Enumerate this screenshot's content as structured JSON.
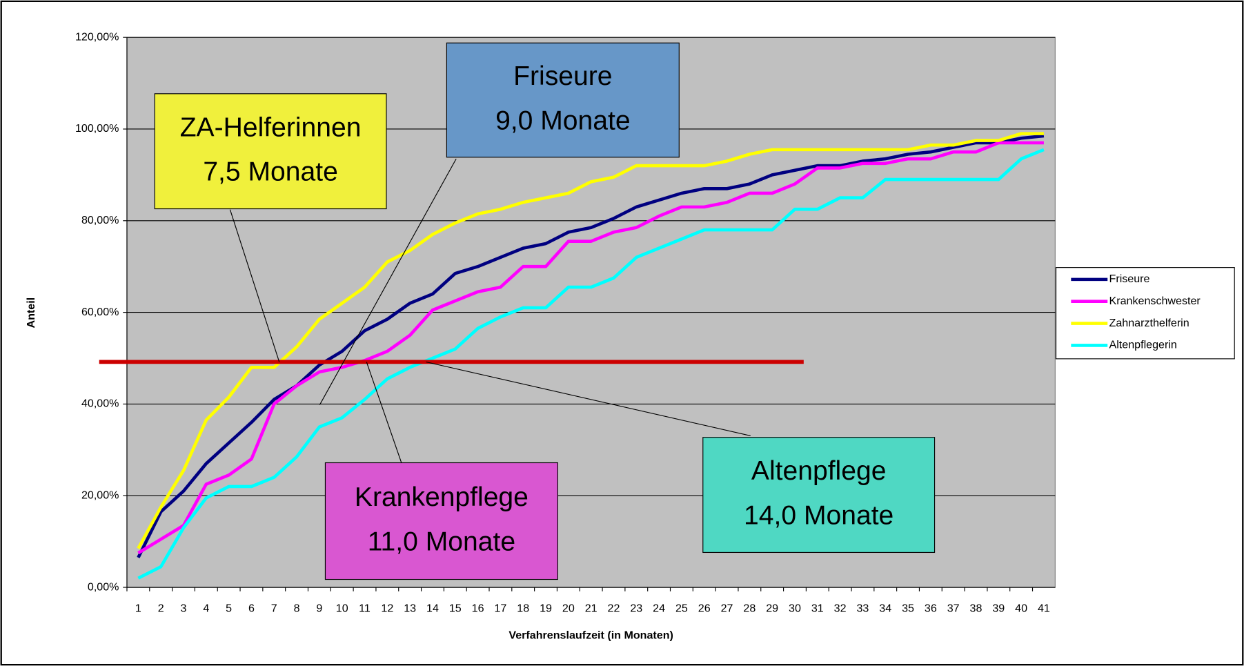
{
  "chart_data": {
    "type": "line",
    "x_label": "Verfahrenslaufzeit (in Monaten)",
    "y_label": "Anteil",
    "categories": [
      1,
      2,
      3,
      4,
      5,
      6,
      7,
      8,
      9,
      10,
      11,
      12,
      13,
      14,
      15,
      16,
      17,
      18,
      19,
      20,
      21,
      22,
      23,
      24,
      25,
      26,
      27,
      28,
      29,
      30,
      31,
      32,
      33,
      34,
      35,
      36,
      37,
      38,
      39,
      40,
      41
    ],
    "ylim": [
      0,
      120
    ],
    "yticks": [
      {
        "value": 0,
        "label": "0,00%"
      },
      {
        "value": 20,
        "label": "20,00%"
      },
      {
        "value": 40,
        "label": "40,00%"
      },
      {
        "value": 60,
        "label": "60,00%"
      },
      {
        "value": 80,
        "label": "80,00%"
      },
      {
        "value": 100,
        "label": "100,00%"
      },
      {
        "value": 120,
        "label": "120,00%"
      }
    ],
    "grid": true,
    "legend": "right",
    "series": [
      {
        "name": "Friseure",
        "color": "#000080",
        "values": [
          6.5,
          16.5,
          21,
          27,
          31.5,
          36,
          41,
          44,
          48.5,
          51.5,
          56,
          58.5,
          62,
          64,
          68.5,
          70,
          72,
          74,
          75,
          77.5,
          78.5,
          80.5,
          83,
          84.5,
          86,
          87,
          87,
          88,
          90,
          91,
          92,
          92,
          93,
          93.5,
          94.5,
          95,
          96,
          97,
          97,
          98,
          98.5
        ]
      },
      {
        "name": "Krankenschwester",
        "color": "#ff00ff",
        "values": [
          7.5,
          10.5,
          13.5,
          22.5,
          24.5,
          28,
          40,
          44,
          47,
          48,
          49.5,
          51.5,
          55,
          60.5,
          62.5,
          64.5,
          65.5,
          70,
          70,
          75.5,
          75.5,
          77.5,
          78.5,
          81,
          83,
          83,
          84,
          86,
          86,
          88,
          91.5,
          91.5,
          92.5,
          92.5,
          93.5,
          93.5,
          95,
          95,
          97,
          97,
          97
        ]
      },
      {
        "name": "Zahnarzthelferin",
        "color": "#ffff00",
        "values": [
          8.5,
          17.5,
          25.5,
          36.5,
          41.5,
          48,
          48,
          52.5,
          58.5,
          62,
          65.5,
          71,
          73.5,
          77,
          79.5,
          81.5,
          82.5,
          84,
          85,
          86,
          88.5,
          89.5,
          92,
          92,
          92,
          92,
          93,
          94.5,
          95.5,
          95.5,
          95.5,
          95.5,
          95.5,
          95.5,
          95.5,
          96.5,
          96.5,
          97.5,
          97.5,
          99,
          99
        ]
      },
      {
        "name": "Altenpflegerin",
        "color": "#00ffff",
        "values": [
          2,
          4.5,
          13,
          19.5,
          22,
          22,
          24,
          28.5,
          35,
          37,
          41,
          45.5,
          48,
          50,
          52,
          56.5,
          59,
          61,
          61,
          65.5,
          65.5,
          67.5,
          72,
          74,
          76,
          78,
          78,
          78,
          78,
          82.5,
          82.5,
          85,
          85,
          89,
          89,
          89,
          89,
          89,
          89,
          93.5,
          95.5
        ]
      }
    ],
    "reference_line": {
      "value": 49.2,
      "color": "#cc0000"
    },
    "annotations": [
      {
        "lines": [
          "ZA-Helferinnen",
          "7,5 Monate"
        ],
        "color": "#f0f03c"
      },
      {
        "lines": [
          "Friseure",
          "9,0 Monate"
        ],
        "color": "#6797c8"
      },
      {
        "lines": [
          "Krankenpflege",
          "11,0 Monate"
        ],
        "color": "#d957d1"
      },
      {
        "lines": [
          "Altenpflege",
          "14,0 Monate"
        ],
        "color": "#4fd8c3"
      }
    ]
  }
}
